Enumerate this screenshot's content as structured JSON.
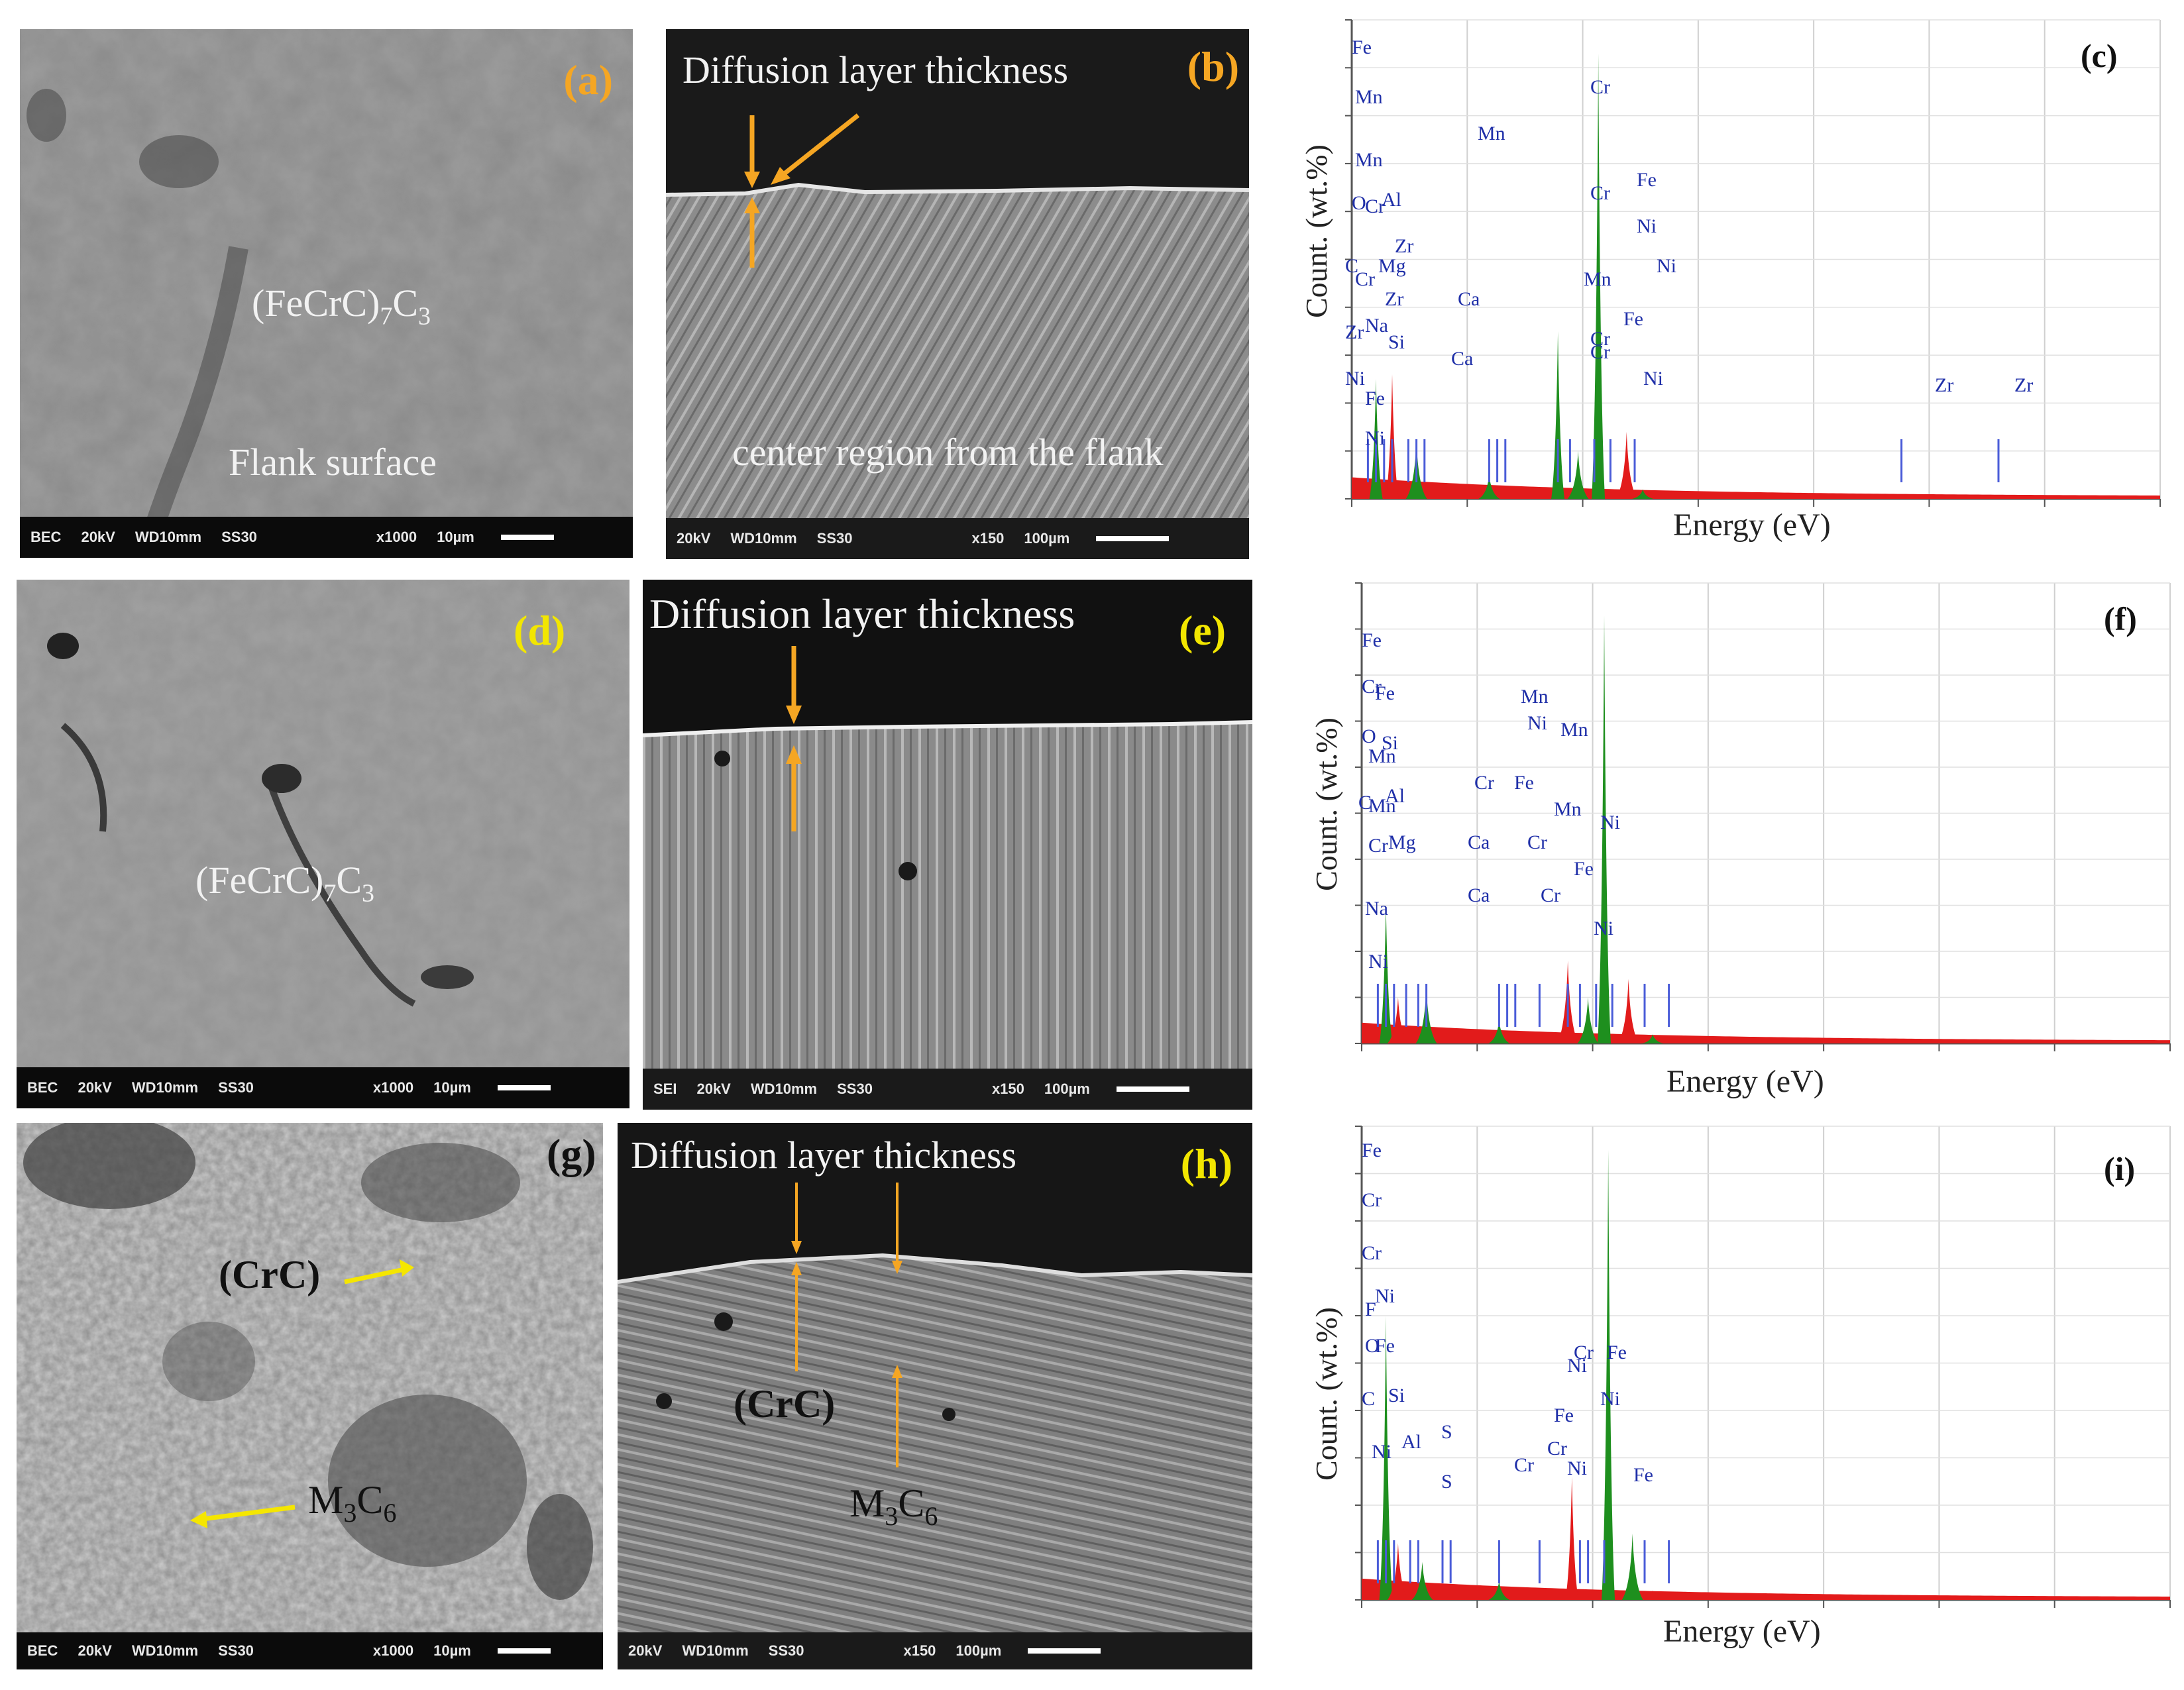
{
  "panels": {
    "a": {
      "label": "(a)",
      "phase": "(FeCrC)",
      "phase_sub1": "7",
      "phase_mid": "C",
      "phase_sub2": "3",
      "region": "Flank surface",
      "info": [
        "BEC",
        "20kV",
        "WD10mm",
        "SS30",
        "x1000",
        "10µm"
      ]
    },
    "b": {
      "label": "(b)",
      "title": "Diffusion layer thickness",
      "region": "center region from the flank",
      "info": [
        "20kV",
        "WD10mm",
        "SS30",
        "x150",
        "100µm"
      ]
    },
    "c": {
      "label": "(c)"
    },
    "d": {
      "label": "(d)",
      "phase": "(FeCrC)",
      "phase_sub1": "7",
      "phase_mid": "C",
      "phase_sub2": "3",
      "info": [
        "BEC",
        "20kV",
        "WD10mm",
        "SS30",
        "x1000",
        "10µm"
      ]
    },
    "e": {
      "label": "(e)",
      "title": "Diffusion layer thickness",
      "info": [
        "SEI",
        "20kV",
        "WD10mm",
        "SS30",
        "x150",
        "100µm"
      ]
    },
    "f": {
      "label": "(f)"
    },
    "g": {
      "label": "(g)",
      "phase1": "(CrC)",
      "phase2": "M",
      "phase2_sub1": "3",
      "phase2_mid": "C",
      "phase2_sub2": "6",
      "info": [
        "BEC",
        "20kV",
        "WD10mm",
        "SS30",
        "x1000",
        "10µm"
      ]
    },
    "h": {
      "label": "(h)",
      "title": "Diffusion layer thickness",
      "phase1": "(CrC)",
      "phase2": "M",
      "phase2_sub1": "3",
      "phase2_mid": "C",
      "phase2_sub2": "6",
      "info": [
        "20kV",
        "WD10mm",
        "SS30",
        "x150",
        "100µm"
      ]
    },
    "i": {
      "label": "(i)"
    }
  },
  "eds_axes": {
    "ylabel": "Count. (wt.%)",
    "xlabel": "Energy (eV)"
  },
  "colors": {
    "label_orange": "#f5a623",
    "label_yellow": "#f2e600",
    "arrow_orange": "#f5a623",
    "arrow_yellow": "#f5e600",
    "element_blue": "#1f2fa8",
    "peak_green": "#1e8f1e",
    "bg_red": "#e21b1b",
    "marker_blue": "#4a5cd8"
  },
  "chart_data": [
    {
      "type": "area",
      "panel": "c",
      "element_labels": [
        "Fe",
        "Mn",
        "Mn",
        "O",
        "Cr",
        "Al",
        "C",
        "Cr",
        "Mg",
        "Zr",
        "Zr",
        "Zr",
        "Na",
        "Si",
        "Ni",
        "Fe",
        "Ni",
        "Mn",
        "Cr",
        "Cr",
        "Fe",
        "Ni",
        "Cr",
        "Ni",
        "Ca",
        "Mn",
        "Fe",
        "Ca",
        "Cr",
        "Ni",
        "Zr",
        "Zr"
      ],
      "peaks": [
        {
          "x": 0.03,
          "y": 0.25
        },
        {
          "x": 0.05,
          "y": 0.26
        },
        {
          "x": 0.08,
          "y": 0.12
        },
        {
          "x": 0.17,
          "y": 0.05
        },
        {
          "x": 0.255,
          "y": 0.35
        },
        {
          "x": 0.28,
          "y": 0.1
        },
        {
          "x": 0.305,
          "y": 0.93
        },
        {
          "x": 0.34,
          "y": 0.14
        },
        {
          "x": 0.36,
          "y": 0.02
        }
      ]
    },
    {
      "type": "area",
      "panel": "f",
      "element_labels": [
        "Fe",
        "Cr",
        "Fe",
        "O",
        "Si",
        "Mn",
        "C",
        "Mn",
        "Al",
        "Cr",
        "Mg",
        "Na",
        "Ni",
        "Mn",
        "Ni",
        "Mn",
        "Cr",
        "Fe",
        "Mn",
        "Ni",
        "Ca",
        "Cr",
        "Fe",
        "Ca",
        "Cr",
        "Ni"
      ],
      "peaks": [
        {
          "x": 0.03,
          "y": 0.3
        },
        {
          "x": 0.045,
          "y": 0.1
        },
        {
          "x": 0.08,
          "y": 0.12
        },
        {
          "x": 0.17,
          "y": 0.05
        },
        {
          "x": 0.255,
          "y": 0.18
        },
        {
          "x": 0.28,
          "y": 0.1
        },
        {
          "x": 0.3,
          "y": 0.93
        },
        {
          "x": 0.33,
          "y": 0.14
        },
        {
          "x": 0.36,
          "y": 0.02
        }
      ]
    },
    {
      "type": "area",
      "panel": "i",
      "element_labels": [
        "Fe",
        "Cr",
        "Cr",
        "F",
        "Ni",
        "O",
        "Fe",
        "C",
        "Si",
        "Ni",
        "Al",
        "S",
        "S",
        "Fe",
        "Cr",
        "Cr",
        "Ni",
        "Cr",
        "Ni",
        "Fe",
        "Ni",
        "Fe"
      ],
      "peaks": [
        {
          "x": 0.03,
          "y": 0.6
        },
        {
          "x": 0.045,
          "y": 0.12
        },
        {
          "x": 0.075,
          "y": 0.08
        },
        {
          "x": 0.17,
          "y": 0.04
        },
        {
          "x": 0.26,
          "y": 0.26
        },
        {
          "x": 0.305,
          "y": 0.95
        },
        {
          "x": 0.335,
          "y": 0.14
        },
        {
          "x": 0.36,
          "y": 0.02
        }
      ]
    }
  ]
}
